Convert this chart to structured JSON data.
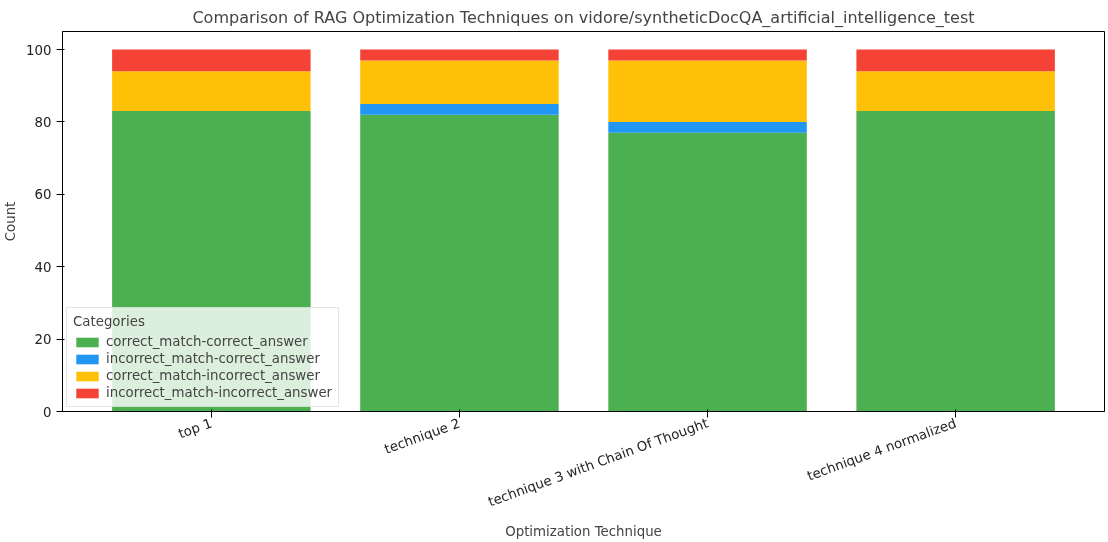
{
  "chart_data": {
    "type": "bar",
    "stacked": true,
    "title": "Comparison of RAG Optimization Techniques on vidore/syntheticDocQA_artificial_intelligence_test",
    "xlabel": "Optimization Technique",
    "ylabel": "Count",
    "legend_title": "Categories",
    "categories": [
      "top 1",
      "technique 2",
      "technique 3 with Chain Of Thought",
      "technique 4 normalized"
    ],
    "series": [
      {
        "name": "correct_match-correct_answer",
        "color": "#4caf50",
        "values": [
          83,
          82,
          77,
          83
        ]
      },
      {
        "name": "incorrect_match-correct_answer",
        "color": "#2196f3",
        "values": [
          0,
          3,
          3,
          0
        ]
      },
      {
        "name": "correct_match-incorrect_answer",
        "color": "#ffc107",
        "values": [
          11,
          12,
          17,
          11
        ]
      },
      {
        "name": "incorrect_match-incorrect_answer",
        "color": "#f44336",
        "values": [
          6,
          3,
          3,
          6
        ]
      }
    ],
    "ylim": [
      0,
      105
    ],
    "yticks": [
      0,
      20,
      40,
      60,
      80,
      100
    ],
    "grid": false,
    "legend": "bottom left"
  }
}
